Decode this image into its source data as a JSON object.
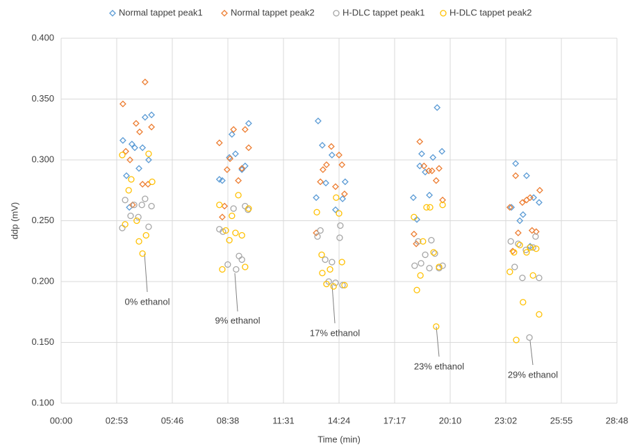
{
  "chart_data": {
    "type": "scatter",
    "x_label": "Time (min)",
    "y_label": "ddp (mV)",
    "xlim": [
      0,
      1728
    ],
    "ylim": [
      0.1,
      0.4
    ],
    "xticks": [
      {
        "value": 0,
        "label": "00:00"
      },
      {
        "value": 172.8,
        "label": "02:53"
      },
      {
        "value": 345.6,
        "label": "05:46"
      },
      {
        "value": 518.4,
        "label": "08:38"
      },
      {
        "value": 691.2,
        "label": "11:31"
      },
      {
        "value": 864,
        "label": "14:24"
      },
      {
        "value": 1036.8,
        "label": "17:17"
      },
      {
        "value": 1209.6,
        "label": "20:10"
      },
      {
        "value": 1382.4,
        "label": "23:02"
      },
      {
        "value": 1555.2,
        "label": "25:55"
      },
      {
        "value": 1728,
        "label": "28:48"
      }
    ],
    "yticks": [
      {
        "value": 0.1,
        "label": "0.100"
      },
      {
        "value": 0.15,
        "label": "0.150"
      },
      {
        "value": 0.2,
        "label": "0.200"
      },
      {
        "value": 0.25,
        "label": "0.250"
      },
      {
        "value": 0.3,
        "label": "0.300"
      },
      {
        "value": 0.35,
        "label": "0.350"
      },
      {
        "value": 0.4,
        "label": "0.400"
      }
    ],
    "grid": true,
    "legend": "top",
    "annotations": [
      "0% ethanol",
      "9% ethanol",
      "17% ethanol",
      "23% ethanol",
      "29% ethanol"
    ],
    "series": [
      {
        "name": "Normal tappet peak1",
        "color": "#5b9bd5",
        "marker": "diamond",
        "x": [
          192,
          203,
          212,
          220,
          229,
          242,
          253,
          261,
          272,
          281,
          492,
          501,
          523,
          531,
          542,
          562,
          572,
          583,
          793,
          799,
          812,
          823,
          842,
          853,
          875,
          883,
          1095,
          1106,
          1115,
          1121,
          1132,
          1145,
          1156,
          1169,
          1184,
          1400,
          1413,
          1426,
          1436,
          1447,
          1458,
          1469,
          1486
        ],
        "values": [
          0.316,
          0.287,
          0.261,
          0.313,
          0.31,
          0.293,
          0.31,
          0.335,
          0.3,
          0.337,
          0.284,
          0.283,
          0.302,
          0.321,
          0.305,
          0.292,
          0.295,
          0.33,
          0.269,
          0.332,
          0.312,
          0.281,
          0.304,
          0.259,
          0.268,
          0.282,
          0.269,
          0.251,
          0.295,
          0.305,
          0.29,
          0.271,
          0.302,
          0.343,
          0.307,
          0.261,
          0.297,
          0.25,
          0.255,
          0.287,
          0.229,
          0.269,
          0.265
        ]
      },
      {
        "name": "Normal tappet peak2",
        "color": "#ed7d31",
        "marker": "diamond",
        "x": [
          192,
          201,
          214,
          222,
          233,
          244,
          253,
          261,
          270,
          281,
          492,
          501,
          508,
          516,
          525,
          536,
          551,
          562,
          572,
          583,
          793,
          806,
          814,
          825,
          840,
          853,
          864,
          873,
          881,
          1097,
          1104,
          1115,
          1128,
          1143,
          1153,
          1166,
          1175,
          1186,
          1395,
          1404,
          1413,
          1421,
          1434,
          1447,
          1458,
          1464,
          1477,
          1488
        ],
        "values": [
          0.346,
          0.307,
          0.3,
          0.263,
          0.33,
          0.323,
          0.28,
          0.364,
          0.28,
          0.327,
          0.314,
          0.253,
          0.262,
          0.292,
          0.301,
          0.325,
          0.283,
          0.293,
          0.325,
          0.31,
          0.24,
          0.282,
          0.292,
          0.296,
          0.311,
          0.278,
          0.304,
          0.296,
          0.272,
          0.239,
          0.231,
          0.315,
          0.295,
          0.291,
          0.291,
          0.283,
          0.293,
          0.267,
          0.261,
          0.225,
          0.287,
          0.24,
          0.265,
          0.267,
          0.269,
          0.242,
          0.241,
          0.275
        ]
      },
      {
        "name": "H-DLC tappet peak1",
        "color": "#a5a5a5",
        "marker": "circle",
        "x": [
          190,
          199,
          216,
          227,
          240,
          251,
          261,
          272,
          281,
          492,
          503,
          518,
          536,
          544,
          553,
          562,
          572,
          581,
          797,
          806,
          821,
          832,
          842,
          853,
          866,
          868,
          875,
          1099,
          1110,
          1119,
          1132,
          1145,
          1151,
          1162,
          1175,
          1186,
          1398,
          1410,
          1421,
          1434,
          1445,
          1456,
          1467,
          1475,
          1486
        ],
        "values": [
          0.244,
          0.267,
          0.254,
          0.263,
          0.253,
          0.263,
          0.268,
          0.245,
          0.262,
          0.243,
          0.241,
          0.214,
          0.26,
          0.21,
          0.221,
          0.218,
          0.262,
          0.259,
          0.237,
          0.242,
          0.218,
          0.2,
          0.216,
          0.199,
          0.236,
          0.246,
          0.197,
          0.213,
          0.233,
          0.215,
          0.222,
          0.211,
          0.234,
          0.223,
          0.211,
          0.213,
          0.233,
          0.212,
          0.231,
          0.203,
          0.226,
          0.154,
          0.228,
          0.237,
          0.203
        ]
      },
      {
        "name": "H-DLC tappet peak2",
        "color": "#ffc000",
        "marker": "circle",
        "x": [
          190,
          199,
          210,
          218,
          235,
          242,
          253,
          264,
          272,
          283,
          492,
          501,
          512,
          523,
          531,
          542,
          551,
          562,
          572,
          583,
          795,
          810,
          812,
          825,
          836,
          847,
          855,
          864,
          873,
          881,
          1097,
          1106,
          1117,
          1125,
          1136,
          1147,
          1158,
          1166,
          1175,
          1186,
          1395,
          1408,
          1415,
          1426,
          1436,
          1447,
          1458,
          1467,
          1477,
          1486
        ],
        "values": [
          0.304,
          0.247,
          0.275,
          0.284,
          0.25,
          0.233,
          0.223,
          0.238,
          0.305,
          0.282,
          0.263,
          0.21,
          0.242,
          0.234,
          0.254,
          0.24,
          0.271,
          0.238,
          0.212,
          0.26,
          0.257,
          0.222,
          0.207,
          0.198,
          0.21,
          0.196,
          0.269,
          0.256,
          0.216,
          0.197,
          0.253,
          0.193,
          0.205,
          0.233,
          0.261,
          0.261,
          0.224,
          0.163,
          0.212,
          0.263,
          0.208,
          0.224,
          0.152,
          0.23,
          0.183,
          0.224,
          0.228,
          0.205,
          0.227,
          0.173
        ]
      }
    ]
  }
}
